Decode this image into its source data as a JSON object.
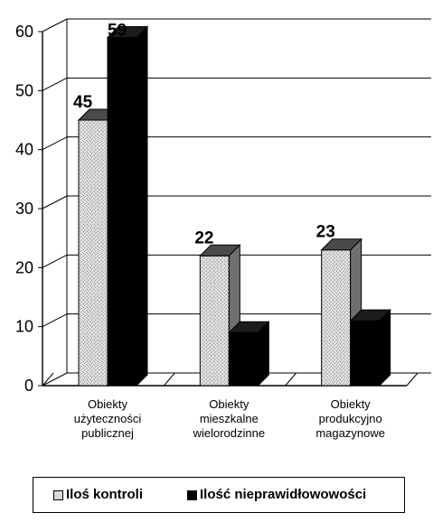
{
  "chart_data": {
    "type": "bar",
    "title": "",
    "xlabel": "",
    "ylabel": "",
    "categories": [
      "Obiekty użyteczności publicznej",
      "Obiekty mieszkalne wielorodzinne",
      "Obiekty produkcyjno magazynowe"
    ],
    "categories_lines": [
      [
        "Obiekty",
        "użyteczności",
        "publicznej"
      ],
      [
        "Obiekty",
        "mieszkalne",
        "wielorodzinne"
      ],
      [
        "Obiekty",
        "produkcyjno",
        "magazynowe"
      ]
    ],
    "series": [
      {
        "name": "Iloś kontroli",
        "values": [
          45,
          22,
          23
        ],
        "color": "#d9d9d9",
        "labeled": true
      },
      {
        "name": "Ilość nieprawidłowowości",
        "values": [
          59,
          9,
          11
        ],
        "color": "#000000",
        "labeled": false
      }
    ],
    "data_labels": [
      "45",
      "59",
      "22",
      "23"
    ],
    "ylim": [
      0,
      60
    ],
    "yticks": [
      "0",
      "10",
      "20",
      "30",
      "40",
      "50",
      "60"
    ],
    "grid": true,
    "legend_position": "bottom",
    "three_d": true
  }
}
